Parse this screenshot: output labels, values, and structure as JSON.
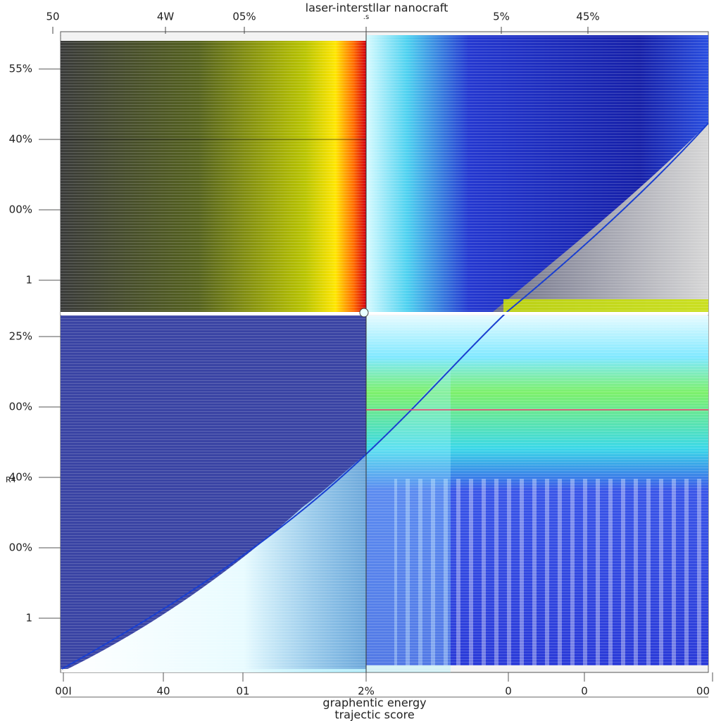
{
  "title": "laser-interstllar nanocraft",
  "top_labels": [
    "50",
    "4W",
    "05%",
    ".s",
    "5%",
    "45%"
  ],
  "left_labels": [
    "55%",
    "40%",
    "00%",
    "1",
    "25%",
    "00%",
    "40%",
    "00%",
    "1"
  ],
  "side_label": "R4",
  "bottom_labels": [
    "00I",
    "40",
    "01",
    "2%",
    "0",
    "0",
    "00"
  ],
  "x_axis_title": [
    "graphentic energy",
    "trajectic score"
  ]
}
